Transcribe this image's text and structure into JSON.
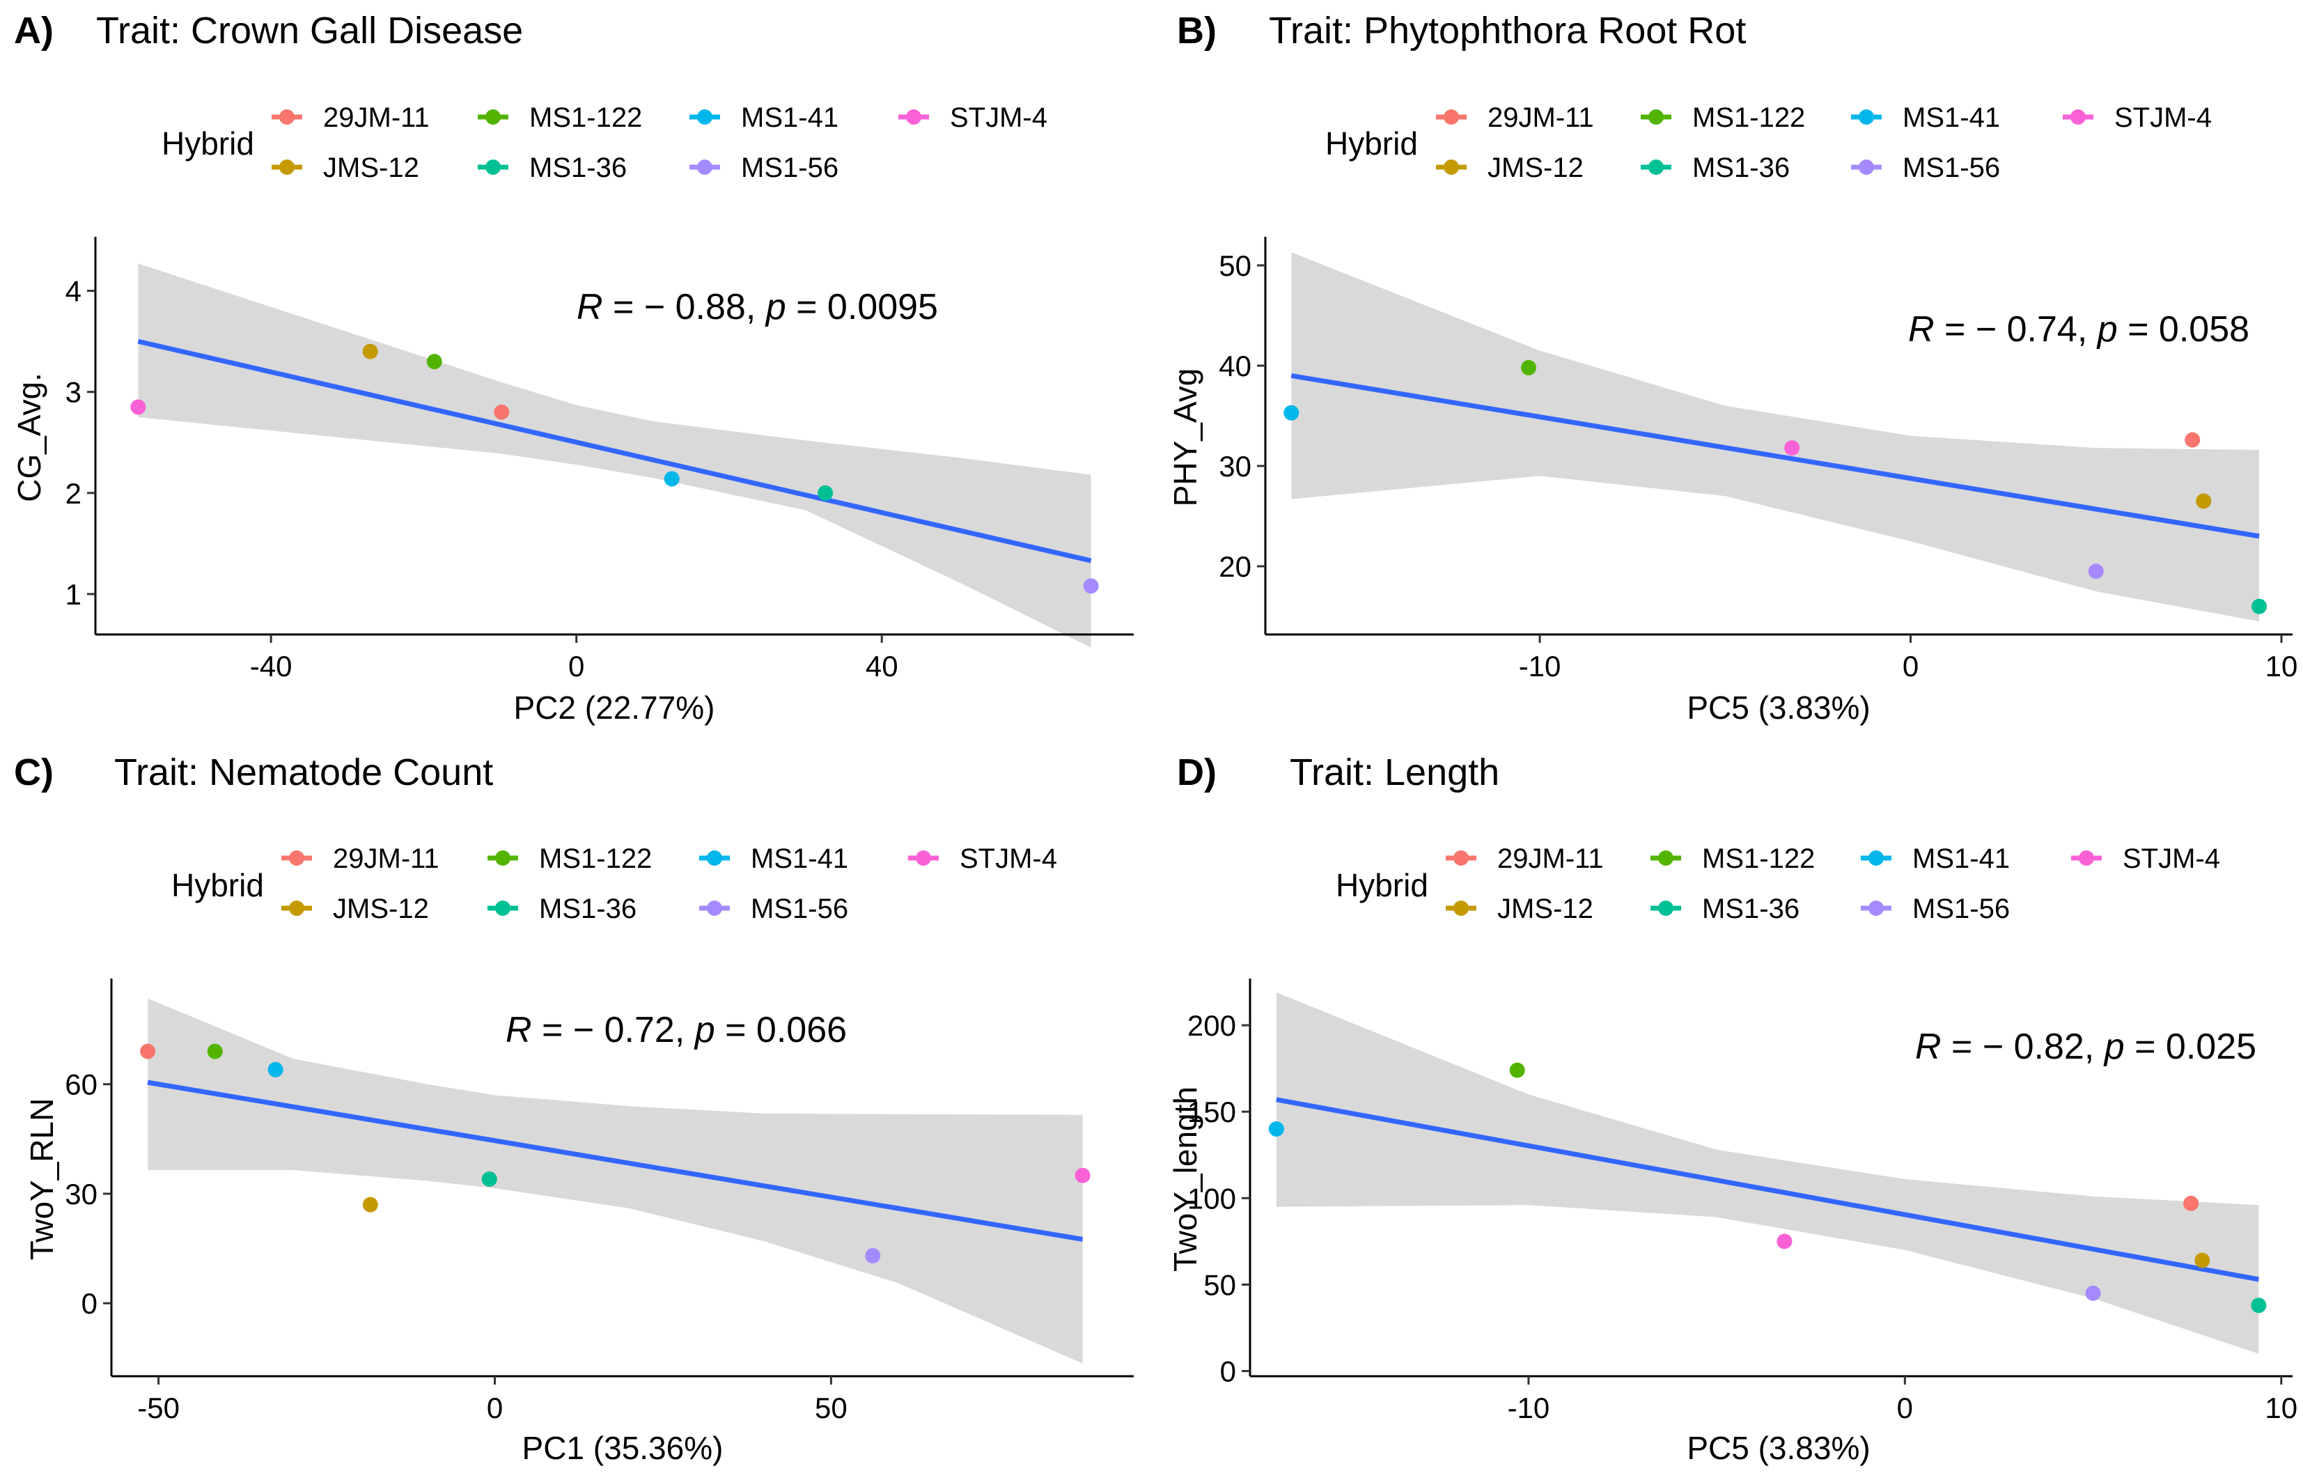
{
  "legend": {
    "title": "Hybrid",
    "items": [
      {
        "name": "29JM-11",
        "color": "#F8766D"
      },
      {
        "name": "JMS-12",
        "color": "#C49A00"
      },
      {
        "name": "MS1-122",
        "color": "#53B400"
      },
      {
        "name": "MS1-36",
        "color": "#00C094"
      },
      {
        "name": "MS1-41",
        "color": "#00B6EB"
      },
      {
        "name": "MS1-56",
        "color": "#A58AFF"
      },
      {
        "name": "STJM-4",
        "color": "#FB61D7"
      }
    ]
  },
  "colors": {
    "regression_line": "#3366FF",
    "confidence_band": "#D9D9D9"
  },
  "chart_data": [
    {
      "type": "scatter",
      "panel": "A)",
      "title": "Trait: Crown Gall Disease",
      "xlabel": "PC2 (22.77%)",
      "ylabel": "CG_Avg.",
      "xlim": [
        -63,
        73
      ],
      "ylim": [
        0.6,
        4.5
      ],
      "xticks": [
        -40,
        0,
        40
      ],
      "xtick_labels": [
        "-40",
        "0",
        "40"
      ],
      "yticks": [
        1,
        2,
        3,
        4
      ],
      "ytick_labels": [
        "1",
        "2",
        "3",
        "4"
      ],
      "stat": {
        "R": "R",
        "r_value": " = − 0.88, ",
        "p": "p",
        "p_value": " = 0.0095"
      },
      "points": [
        {
          "hybrid": "29JM-11",
          "x": -9.8,
          "y": 2.8
        },
        {
          "hybrid": "JMS-12",
          "x": -27,
          "y": 3.4
        },
        {
          "hybrid": "MS1-122",
          "x": -18.6,
          "y": 3.3
        },
        {
          "hybrid": "MS1-36",
          "x": 32.6,
          "y": 2.0
        },
        {
          "hybrid": "MS1-41",
          "x": 12.5,
          "y": 2.14
        },
        {
          "hybrid": "MS1-56",
          "x": 67.4,
          "y": 1.08
        },
        {
          "hybrid": "STJM-4",
          "x": -57.4,
          "y": 2.85
        }
      ],
      "fit": {
        "x_range": [
          -57.4,
          67.4
        ],
        "y_range": [
          3.5,
          1.33
        ]
      },
      "band": {
        "x": [
          -57.4,
          -10,
          0,
          10,
          30,
          50,
          67.4
        ],
        "upper": [
          4.27,
          3.1,
          2.87,
          2.71,
          2.52,
          2.35,
          2.18
        ],
        "lower": [
          2.75,
          2.39,
          2.28,
          2.15,
          1.83,
          1.12,
          0.47
        ]
      }
    },
    {
      "type": "scatter",
      "panel": "B)",
      "title": "Trait: Phytophthora Root Rot",
      "xlabel": "PC5 (3.83%)",
      "ylabel": "PHY_Avg",
      "xlim": [
        -17.4,
        10.3
      ],
      "ylim": [
        13.2,
        52.5
      ],
      "xticks": [
        -10,
        0,
        10
      ],
      "xtick_labels": [
        "-10",
        "0",
        "10"
      ],
      "yticks": [
        20,
        30,
        40,
        50
      ],
      "ytick_labels": [
        "20",
        "30",
        "40",
        "50"
      ],
      "stat": {
        "R": "R",
        "r_value": " = − 0.74, ",
        "p": "p",
        "p_value": " = 0.058"
      },
      "points": [
        {
          "hybrid": "29JM-11",
          "x": 7.6,
          "y": 32.6
        },
        {
          "hybrid": "JMS-12",
          "x": 7.9,
          "y": 26.5
        },
        {
          "hybrid": "MS1-122",
          "x": -10.3,
          "y": 39.8
        },
        {
          "hybrid": "MS1-36",
          "x": 9.4,
          "y": 16.0
        },
        {
          "hybrid": "MS1-41",
          "x": -16.7,
          "y": 35.3
        },
        {
          "hybrid": "MS1-56",
          "x": 5.0,
          "y": 19.5
        },
        {
          "hybrid": "STJM-4",
          "x": -3.2,
          "y": 31.8
        }
      ],
      "fit": {
        "x_range": [
          -16.7,
          9.4
        ],
        "y_range": [
          39.0,
          23.0
        ]
      },
      "band": {
        "x": [
          -16.7,
          -10,
          -5,
          0,
          5,
          9.4
        ],
        "upper": [
          51.3,
          41.5,
          36.0,
          33.0,
          31.8,
          31.6
        ],
        "lower": [
          26.7,
          29.0,
          27.0,
          22.5,
          17.5,
          14.5
        ]
      }
    },
    {
      "type": "scatter",
      "panel": "C)",
      "title": "Trait: Nematode Count",
      "xlabel": "PC1 (35.36%)",
      "ylabel": "TwoY_RLN",
      "xlim": [
        -57,
        95
      ],
      "ylim": [
        -20,
        88
      ],
      "xticks": [
        -50,
        0,
        50
      ],
      "xtick_labels": [
        "-50",
        "0",
        "50"
      ],
      "yticks": [
        0,
        30,
        60
      ],
      "ytick_labels": [
        "0",
        "30",
        "60"
      ],
      "stat": {
        "R": "R",
        "r_value": " = − 0.72, ",
        "p": "p",
        "p_value": " = 0.066"
      },
      "points": [
        {
          "hybrid": "29JM-11",
          "x": -51.6,
          "y": 69
        },
        {
          "hybrid": "JMS-12",
          "x": -18.5,
          "y": 27
        },
        {
          "hybrid": "MS1-122",
          "x": -41.6,
          "y": 69
        },
        {
          "hybrid": "MS1-36",
          "x": -0.8,
          "y": 34
        },
        {
          "hybrid": "MS1-41",
          "x": -32.6,
          "y": 64
        },
        {
          "hybrid": "MS1-56",
          "x": 56.2,
          "y": 13
        },
        {
          "hybrid": "STJM-4",
          "x": 87.4,
          "y": 35
        }
      ],
      "fit": {
        "x_range": [
          -51.6,
          87.4
        ],
        "y_range": [
          60.5,
          17.5
        ]
      },
      "band": {
        "x": [
          -51.6,
          -30,
          -10,
          0,
          20,
          40,
          60,
          87.4
        ],
        "upper": [
          83.5,
          67.0,
          60.0,
          57.0,
          54.0,
          52.0,
          51.8,
          51.6
        ],
        "lower": [
          36.5,
          36.5,
          33.5,
          31.5,
          26.0,
          17.0,
          5.5,
          -16.5
        ]
      }
    },
    {
      "type": "scatter",
      "panel": "D)",
      "title": "Trait: Length",
      "xlabel": "PC5 (3.83%)",
      "ylabel": "TwoY_length",
      "xlim": [
        -17.4,
        10.3
      ],
      "ylim": [
        -3,
        225
      ],
      "xticks": [
        -10,
        0,
        10
      ],
      "xtick_labels": [
        "-10",
        "0",
        "10"
      ],
      "yticks": [
        0,
        50,
        100,
        150,
        200
      ],
      "ytick_labels": [
        "0",
        "50",
        "100",
        "150",
        "200"
      ],
      "stat": {
        "R": "R",
        "r_value": " = − 0.82, ",
        "p": "p",
        "p_value": " = 0.025"
      },
      "points": [
        {
          "hybrid": "29JM-11",
          "x": 7.6,
          "y": 97
        },
        {
          "hybrid": "JMS-12",
          "x": 7.9,
          "y": 64
        },
        {
          "hybrid": "MS1-122",
          "x": -10.3,
          "y": 174
        },
        {
          "hybrid": "MS1-36",
          "x": 9.4,
          "y": 38
        },
        {
          "hybrid": "MS1-41",
          "x": -16.7,
          "y": 140
        },
        {
          "hybrid": "MS1-56",
          "x": 5.0,
          "y": 45
        },
        {
          "hybrid": "STJM-4",
          "x": -3.2,
          "y": 75
        }
      ],
      "fit": {
        "x_range": [
          -16.7,
          9.4
        ],
        "y_range": [
          157,
          53
        ]
      },
      "band": {
        "x": [
          -16.7,
          -10,
          -5,
          0,
          5,
          9.4
        ],
        "upper": [
          219,
          160,
          128,
          111,
          101,
          96
        ],
        "lower": [
          95,
          96,
          89,
          70,
          42,
          10
        ]
      }
    }
  ]
}
